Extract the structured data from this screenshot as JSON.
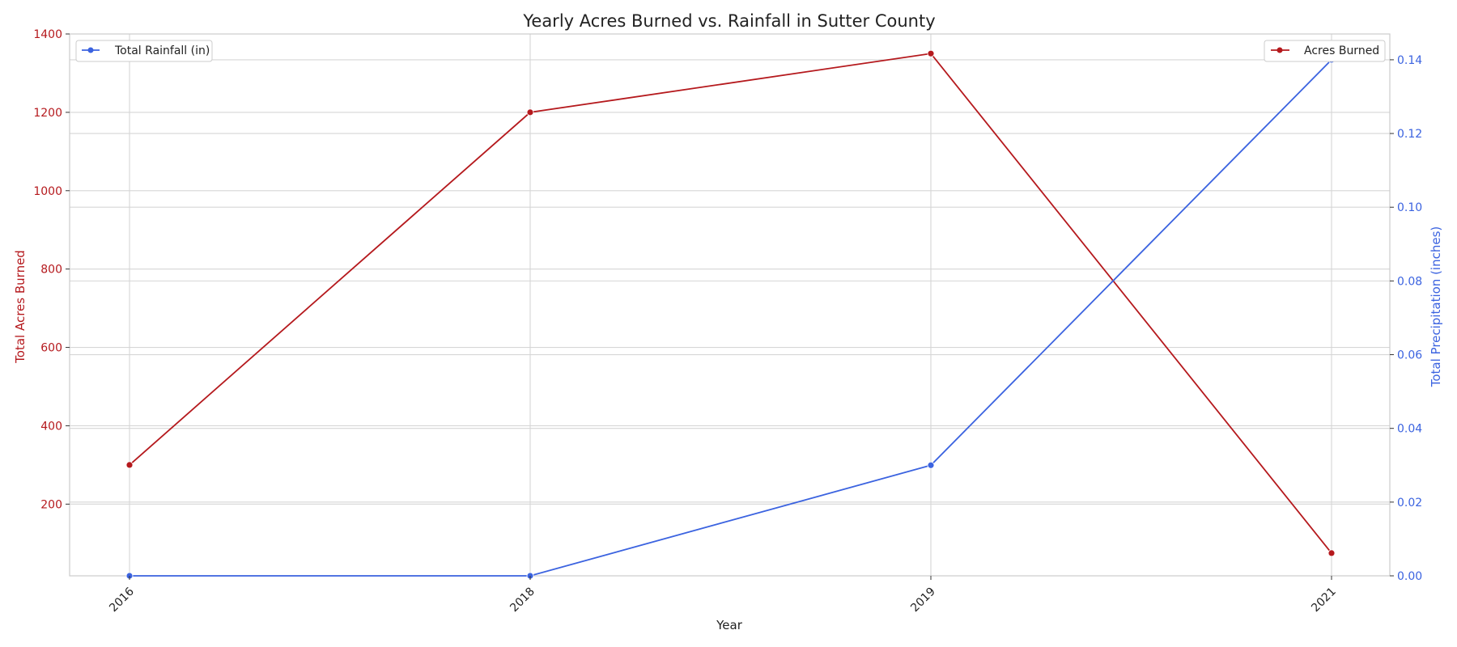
{
  "chart_data": {
    "type": "line",
    "title": "Yearly Acres Burned vs. Rainfall in Sutter County",
    "xlabel": "Year",
    "categories": [
      "2016",
      "2018",
      "2019",
      "2021"
    ],
    "y_left": {
      "label": "Total Acres Burned",
      "ticks": [
        200,
        400,
        600,
        800,
        1000,
        1200,
        1400
      ],
      "ylim": [
        17,
        1400
      ],
      "color": "#b5191d"
    },
    "y_right": {
      "label": "Total Precipitation (inches)",
      "ticks": [
        0.0,
        0.02,
        0.04,
        0.06,
        0.08,
        0.1,
        0.12,
        0.14
      ],
      "tick_labels": [
        "0.00",
        "0.02",
        "0.04",
        "0.06",
        "0.08",
        "0.10",
        "0.12",
        "0.14"
      ],
      "ylim": [
        0.0,
        0.147
      ],
      "color": "#3b63e0"
    },
    "series": [
      {
        "name": "Acres Burned",
        "axis": "left",
        "color": "#b5191d",
        "values": [
          300,
          1200,
          1350,
          75
        ]
      },
      {
        "name": "Total Rainfall (in)",
        "axis": "right",
        "color": "#3b63e0",
        "values": [
          0.0,
          0.0,
          0.03,
          0.14
        ]
      }
    ],
    "legends": [
      {
        "series": "Total Rainfall (in)",
        "placement": "top-left"
      },
      {
        "series": "Acres Burned",
        "placement": "top-right"
      }
    ],
    "grid": true
  }
}
